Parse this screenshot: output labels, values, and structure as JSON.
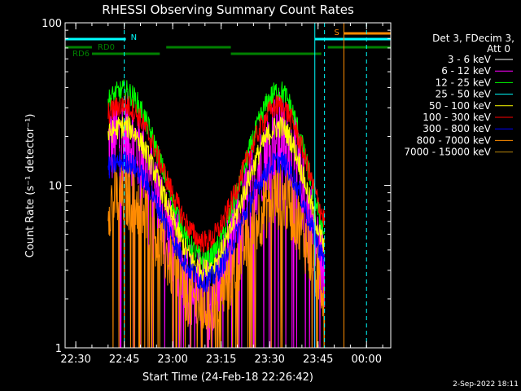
{
  "chart_data": {
    "type": "line",
    "title": "RHESSI Observing Summary Count Rates",
    "xlabel": "Start Time (24-Feb-18 22:26:42)",
    "ylabel": "Count Rate (s⁻¹ detector⁻¹)",
    "y_scale": "log",
    "ylim": [
      1,
      100
    ],
    "xlim": [
      "22:26:42",
      "00:07:30"
    ],
    "x_ticks": [
      "22:30",
      "22:45",
      "23:00",
      "23:15",
      "23:30",
      "23:45",
      "00:00"
    ],
    "y_ticks": [
      "1",
      "10",
      "100"
    ],
    "legend_header": [
      "Det 3, FDecim 3,",
      "Att 0"
    ],
    "legend_placement": "right",
    "series": [
      {
        "name": "3 - 6 keV",
        "color": "#ffffff",
        "shape": [
          0,
          0
        ],
        "noise": 0
      },
      {
        "name": "6 - 12 keV",
        "color": "#ff00ff",
        "shape": [
          2.1,
          20
        ],
        "noise": 0.3
      },
      {
        "name": "12 - 25 keV",
        "color": "#00ff00",
        "shape": [
          3.5,
          38
        ],
        "noise": 0.12
      },
      {
        "name": "25 - 50 keV",
        "color": "#00ffff",
        "shape": [
          0,
          0
        ],
        "noise": 0
      },
      {
        "name": "50 - 100 keV",
        "color": "#ffff00",
        "shape": [
          3.0,
          23
        ],
        "noise": 0.12
      },
      {
        "name": "100 - 300 keV",
        "color": "#ff0000",
        "shape": [
          4.5,
          31
        ],
        "noise": 0.12
      },
      {
        "name": "300 - 800 keV",
        "color": "#0000ff",
        "shape": [
          2.6,
          14
        ],
        "noise": 0.12
      },
      {
        "name": "800 - 7000 keV",
        "color": "#ff8c00",
        "shape": [
          1.8,
          8.5
        ],
        "noise": 0.22
      },
      {
        "name": "7000 - 15000 keV",
        "color": "#b8860b",
        "shape": [
          0,
          0
        ],
        "noise": 0
      }
    ],
    "data_window": [
      "22:40",
      "23:47"
    ],
    "peaks": [
      "22:45",
      "23:33"
    ],
    "trough": "23:10",
    "flags": [
      {
        "label": "N",
        "color": "#00ffff",
        "intervals": [
          [
            "22:26:42",
            "22:45:30"
          ],
          [
            "23:44",
            "00:07:30"
          ]
        ],
        "level": 0
      },
      {
        "label": "RD0",
        "color": "#008000",
        "intervals": [
          [
            "22:26:42",
            "22:35"
          ],
          [
            "22:58",
            "23:18"
          ],
          [
            "23:48",
            "00:07:30"
          ]
        ],
        "level": 1
      },
      {
        "label": "RD6",
        "color": "#008000",
        "intervals": [
          [
            "22:35",
            "22:56"
          ],
          [
            "23:18",
            "23:46"
          ]
        ],
        "level": 2
      },
      {
        "label": "S",
        "color": "#ff8c00",
        "intervals": [
          [
            "23:53",
            "00:07:30"
          ]
        ],
        "level": -1
      }
    ],
    "vlines": [
      {
        "x": "22:26:42",
        "color": "#00ffff",
        "style": "solid"
      },
      {
        "x": "22:45",
        "color": "#00ffff",
        "style": "dashed"
      },
      {
        "x": "23:44",
        "color": "#00ffff",
        "style": "solid"
      },
      {
        "x": "23:47",
        "color": "#00ffff",
        "style": "dashed"
      },
      {
        "x": "23:53",
        "color": "#ff8c00",
        "style": "solid"
      },
      {
        "x": "00:00",
        "color": "#00ffff",
        "style": "dashed"
      }
    ]
  },
  "footer": {
    "timestamp": "2-Sep-2022 18:11"
  }
}
